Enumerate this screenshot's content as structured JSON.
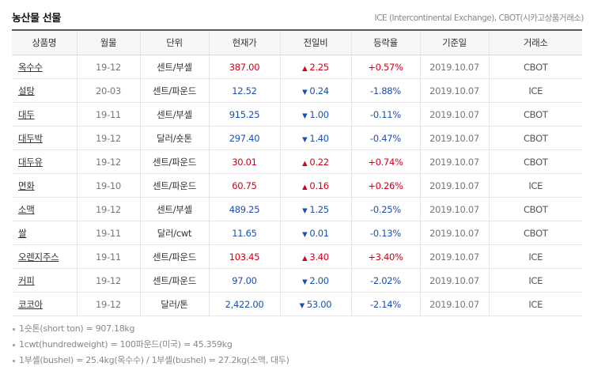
{
  "title": "농산물 선물",
  "source": "ICE (Intercontinental Exchange), CBOT(시카고상품거래소)",
  "headers": {
    "name": "상품명",
    "month": "월물",
    "unit": "단위",
    "price": "현재가",
    "change": "전일비",
    "rate": "등락율",
    "date": "기준일",
    "exchange": "거래소"
  },
  "rows": [
    {
      "name": "옥수수",
      "month": "19-12",
      "unit": "센트/부셸",
      "price": "387.00",
      "direction": "up",
      "arrow": "▲",
      "change": "2.25",
      "rate": "+0.57%",
      "date": "2019.10.07",
      "exchange": "CBOT"
    },
    {
      "name": "설탕",
      "month": "20-03",
      "unit": "센트/파운드",
      "price": "12.52",
      "direction": "down",
      "arrow": "▼",
      "change": "0.24",
      "rate": "-1.88%",
      "date": "2019.10.07",
      "exchange": "ICE"
    },
    {
      "name": "대두",
      "month": "19-11",
      "unit": "센트/부셸",
      "price": "915.25",
      "direction": "down",
      "arrow": "▼",
      "change": "1.00",
      "rate": "-0.11%",
      "date": "2019.10.07",
      "exchange": "CBOT"
    },
    {
      "name": "대두박",
      "month": "19-12",
      "unit": "달러/숏톤",
      "price": "297.40",
      "direction": "down",
      "arrow": "▼",
      "change": "1.40",
      "rate": "-0.47%",
      "date": "2019.10.07",
      "exchange": "CBOT"
    },
    {
      "name": "대두유",
      "month": "19-12",
      "unit": "센트/파운드",
      "price": "30.01",
      "direction": "up",
      "arrow": "▲",
      "change": "0.22",
      "rate": "+0.74%",
      "date": "2019.10.07",
      "exchange": "CBOT"
    },
    {
      "name": "면화",
      "month": "19-10",
      "unit": "센트/파운드",
      "price": "60.75",
      "direction": "up",
      "arrow": "▲",
      "change": "0.16",
      "rate": "+0.26%",
      "date": "2019.10.07",
      "exchange": "ICE"
    },
    {
      "name": "소맥",
      "month": "19-12",
      "unit": "센트/부셸",
      "price": "489.25",
      "direction": "down",
      "arrow": "▼",
      "change": "1.25",
      "rate": "-0.25%",
      "date": "2019.10.07",
      "exchange": "CBOT"
    },
    {
      "name": "쌀",
      "month": "19-11",
      "unit": "달러/cwt",
      "price": "11.65",
      "direction": "down",
      "arrow": "▼",
      "change": "0.01",
      "rate": "-0.13%",
      "date": "2019.10.07",
      "exchange": "CBOT"
    },
    {
      "name": "오렌지주스",
      "month": "19-11",
      "unit": "센트/파운드",
      "price": "103.45",
      "direction": "up",
      "arrow": "▲",
      "change": "3.40",
      "rate": "+3.40%",
      "date": "2019.10.07",
      "exchange": "ICE"
    },
    {
      "name": "커피",
      "month": "19-12",
      "unit": "센트/파운드",
      "price": "97.00",
      "direction": "down",
      "arrow": "▼",
      "change": "2.00",
      "rate": "-2.02%",
      "date": "2019.10.07",
      "exchange": "ICE"
    },
    {
      "name": "코코아",
      "month": "19-12",
      "unit": "달러/톤",
      "price": "2,422.00",
      "direction": "down",
      "arrow": "▼",
      "change": "53.00",
      "rate": "-2.14%",
      "date": "2019.10.07",
      "exchange": "ICE"
    }
  ],
  "notes": [
    "1숏톤(short ton) = 907.18kg",
    "1cwt(hundredweight) = 100파운드(미국) = 45.359kg",
    "1부셸(bushel) = 25.4kg(옥수수) / 1부셸(bushel) = 27.2kg(소맥, 대두)"
  ],
  "colors": {
    "up": "#d0021b",
    "down": "#1a4fb5"
  }
}
